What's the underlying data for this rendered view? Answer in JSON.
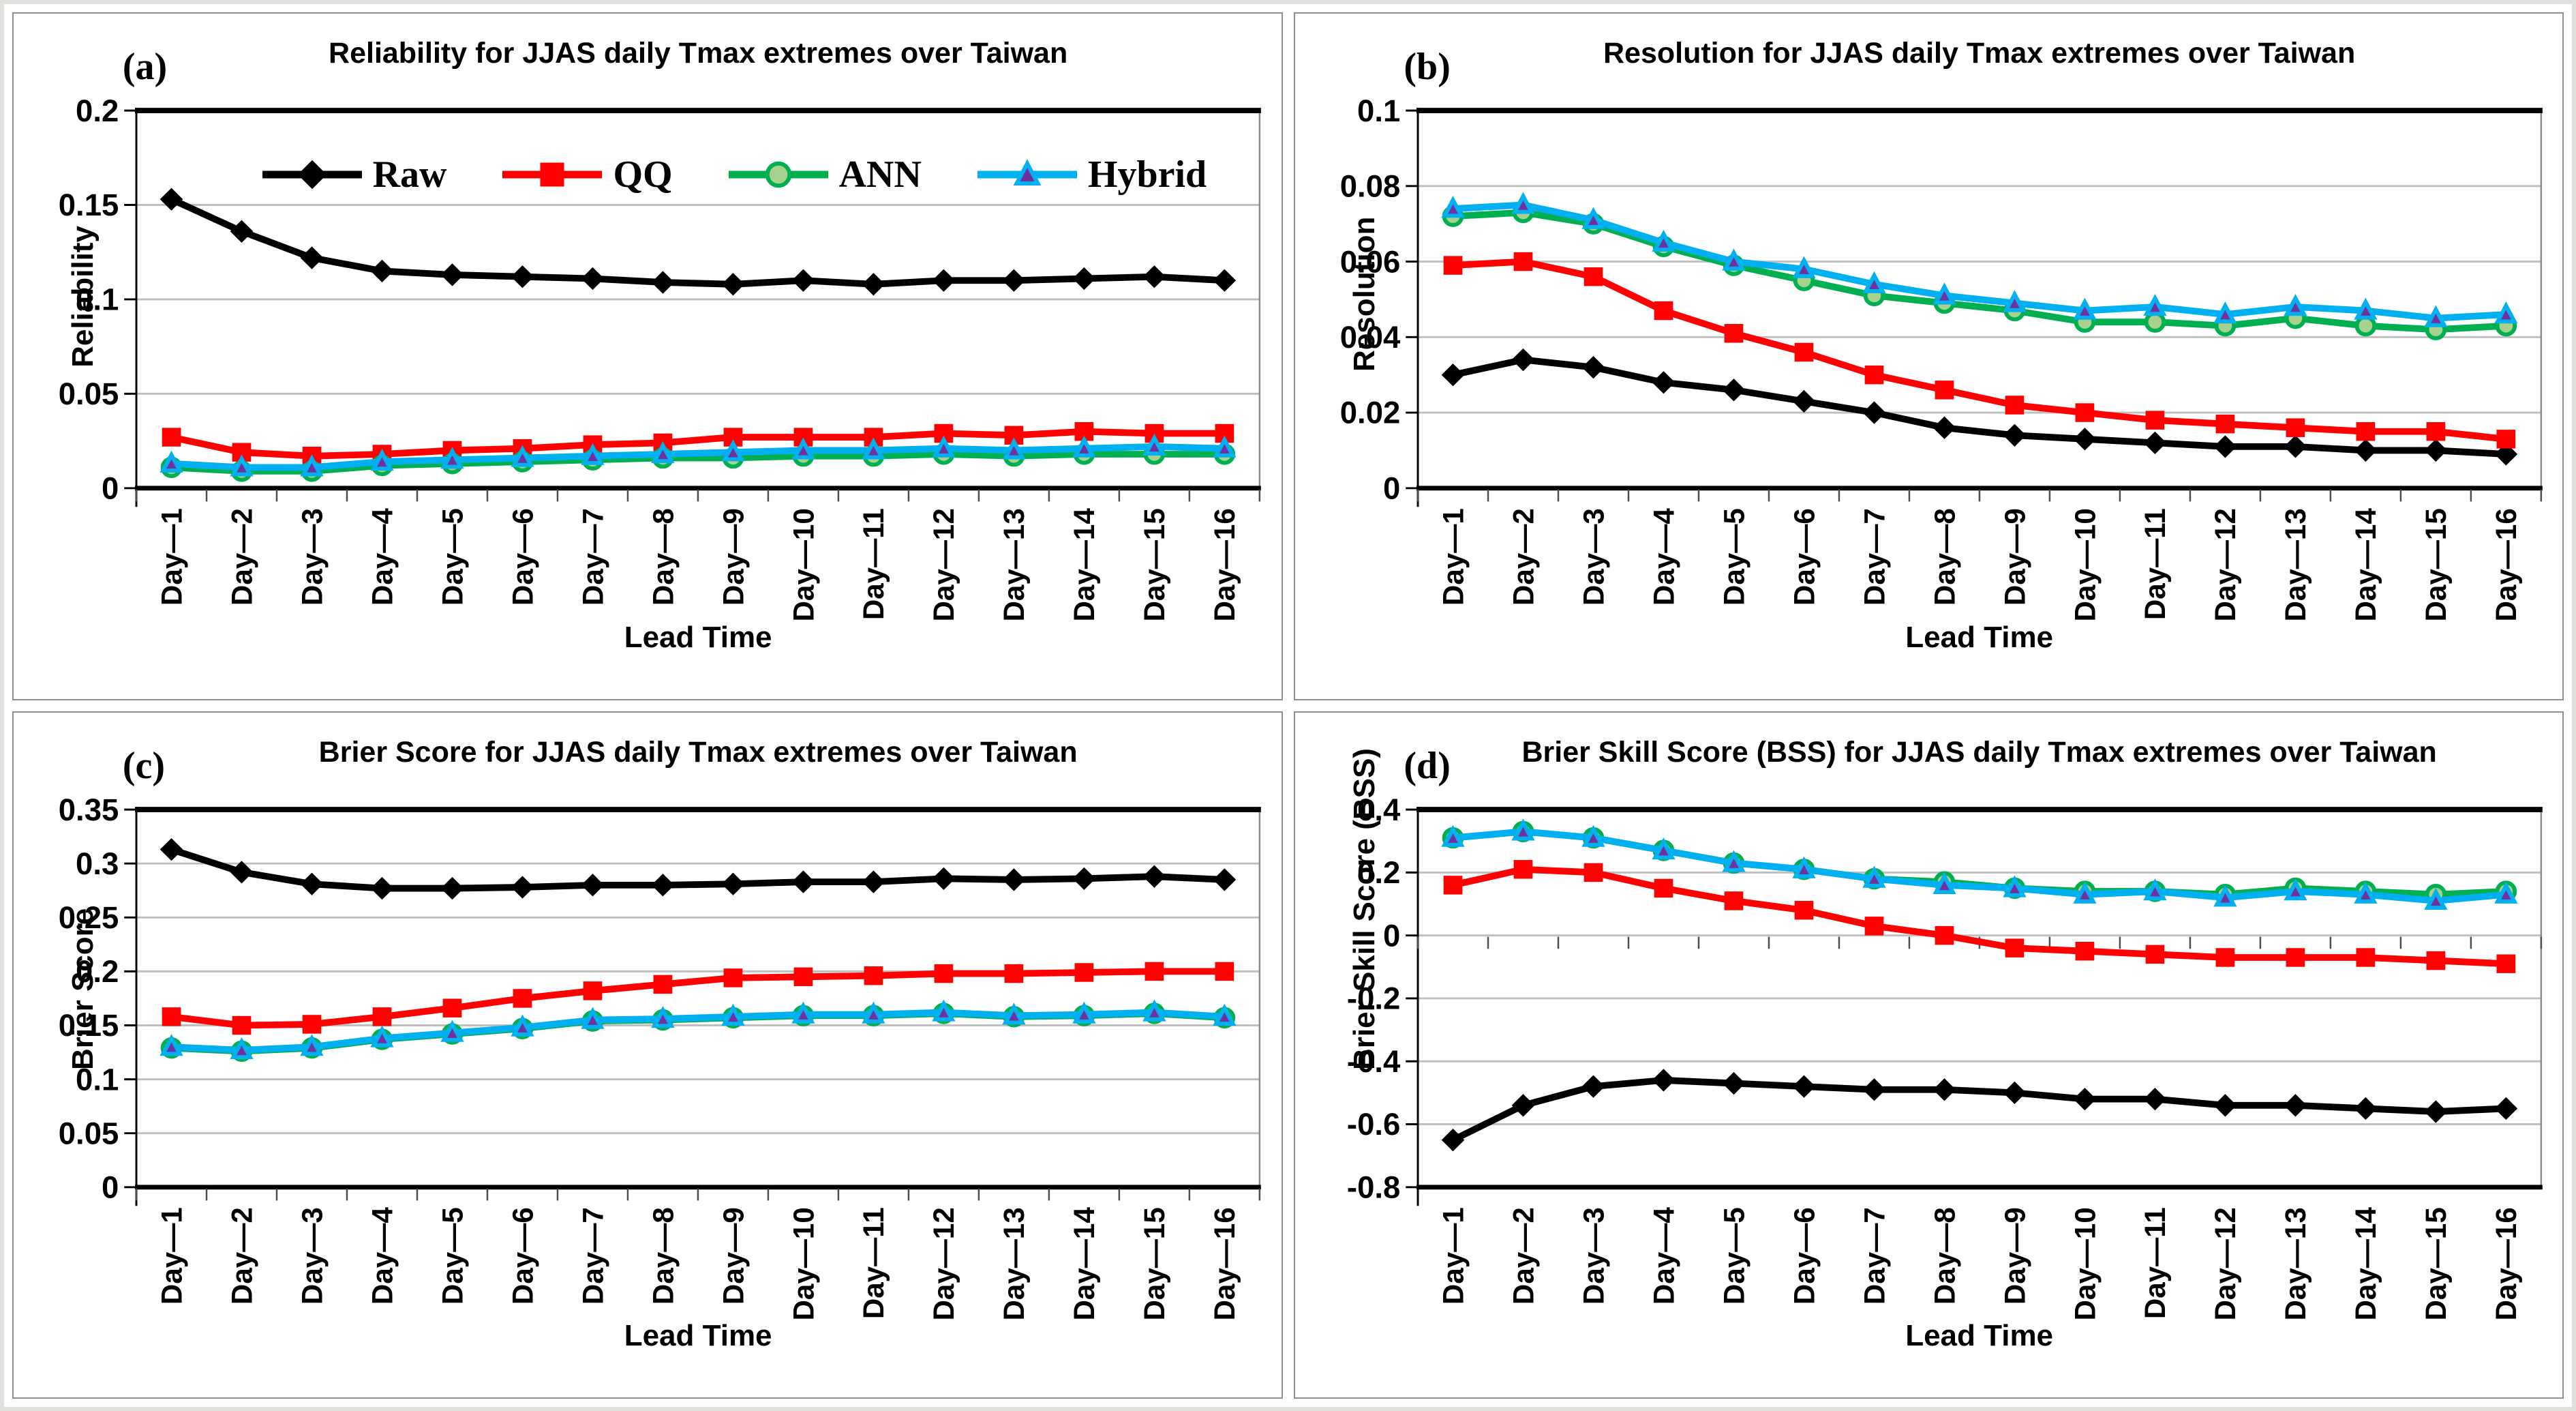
{
  "legend": {
    "items": [
      {
        "label": "Raw",
        "color": "#000000",
        "marker": "diamond",
        "marker_fill": "#000000"
      },
      {
        "label": "QQ",
        "color": "#FF0000",
        "marker": "square",
        "marker_fill": "#FF0000"
      },
      {
        "label": "ANN",
        "color": "#00B050",
        "marker": "circle",
        "marker_fill": "#A9D18E"
      },
      {
        "label": "Hybrid",
        "color": "#00B0F0",
        "marker": "triangle",
        "marker_fill": "#7030A0"
      }
    ],
    "position": "inside-top-panel-a"
  },
  "style": {
    "gridline_color": "#BFBFBF",
    "axis_color": "#000000",
    "right_border_color": "#8A8A8A",
    "tick_color": "#4D4D4D"
  },
  "chart_data": [
    {
      "type": "line",
      "panel_label": "(a)",
      "title": "Reliability  for JJAS daily Tmax extremes over Taiwan",
      "ylabel": "Reliability",
      "xlabel": "Lead Time",
      "ylim": [
        0,
        0.2
      ],
      "yticks": [
        0,
        0.05,
        0.1,
        0.15,
        0.2
      ],
      "ytick_labels": [
        "0",
        "0.05",
        "0.1",
        "0.15",
        "0.2"
      ],
      "grid": true,
      "legend": true,
      "categories": [
        "Day—1",
        "Day—2",
        "Day—3",
        "Day—4",
        "Day—5",
        "Day—6",
        "Day—7",
        "Day—8",
        "Day—9",
        "Day—10",
        "Day—11",
        "Day—12",
        "Day—13",
        "Day—14",
        "Day—15",
        "Day—16"
      ],
      "series": [
        {
          "name": "Raw",
          "values": [
            0.153,
            0.136,
            0.122,
            0.115,
            0.113,
            0.112,
            0.111,
            0.109,
            0.108,
            0.11,
            0.108,
            0.11,
            0.11,
            0.111,
            0.112,
            0.11
          ]
        },
        {
          "name": "QQ",
          "values": [
            0.027,
            0.019,
            0.017,
            0.018,
            0.02,
            0.021,
            0.023,
            0.024,
            0.027,
            0.027,
            0.027,
            0.029,
            0.028,
            0.03,
            0.029,
            0.029
          ]
        },
        {
          "name": "ANN",
          "values": [
            0.011,
            0.009,
            0.009,
            0.012,
            0.013,
            0.014,
            0.015,
            0.016,
            0.016,
            0.017,
            0.017,
            0.018,
            0.017,
            0.018,
            0.018,
            0.018
          ]
        },
        {
          "name": "Hybrid",
          "values": [
            0.013,
            0.011,
            0.011,
            0.014,
            0.015,
            0.016,
            0.017,
            0.018,
            0.019,
            0.02,
            0.02,
            0.021,
            0.02,
            0.021,
            0.022,
            0.021
          ]
        }
      ]
    },
    {
      "type": "line",
      "panel_label": "(b)",
      "title": "Resolution  for JJAS daily Tmax extremes over Taiwan",
      "ylabel": "Resolution",
      "xlabel": "Lead Time",
      "ylim": [
        0,
        0.1
      ],
      "yticks": [
        0,
        0.02,
        0.04,
        0.06,
        0.08,
        0.1
      ],
      "ytick_labels": [
        "0",
        "0.02",
        "0.04",
        "0.06",
        "0.08",
        "0.1"
      ],
      "grid": true,
      "legend": false,
      "categories": [
        "Day—1",
        "Day—2",
        "Day—3",
        "Day—4",
        "Day—5",
        "Day—6",
        "Day—7",
        "Day—8",
        "Day—9",
        "Day—10",
        "Day—11",
        "Day—12",
        "Day—13",
        "Day—14",
        "Day—15",
        "Day—16"
      ],
      "series": [
        {
          "name": "Raw",
          "values": [
            0.03,
            0.034,
            0.032,
            0.028,
            0.026,
            0.023,
            0.02,
            0.016,
            0.014,
            0.013,
            0.012,
            0.011,
            0.011,
            0.01,
            0.01,
            0.009
          ]
        },
        {
          "name": "QQ",
          "values": [
            0.059,
            0.06,
            0.056,
            0.047,
            0.041,
            0.036,
            0.03,
            0.026,
            0.022,
            0.02,
            0.018,
            0.017,
            0.016,
            0.015,
            0.015,
            0.013
          ]
        },
        {
          "name": "ANN",
          "values": [
            0.072,
            0.073,
            0.07,
            0.064,
            0.059,
            0.055,
            0.051,
            0.049,
            0.047,
            0.044,
            0.044,
            0.043,
            0.045,
            0.043,
            0.042,
            0.043
          ]
        },
        {
          "name": "Hybrid",
          "values": [
            0.074,
            0.075,
            0.071,
            0.065,
            0.06,
            0.058,
            0.054,
            0.051,
            0.049,
            0.047,
            0.048,
            0.046,
            0.048,
            0.047,
            0.045,
            0.046
          ]
        }
      ]
    },
    {
      "type": "line",
      "panel_label": "(c)",
      "title": "Brier Score for JJAS daily Tmax extremes over Taiwan",
      "ylabel": "Brier Score",
      "xlabel": "Lead Time",
      "ylim": [
        0,
        0.35
      ],
      "yticks": [
        0,
        0.05,
        0.1,
        0.15,
        0.2,
        0.25,
        0.3,
        0.35
      ],
      "ytick_labels": [
        "0",
        "0.05",
        "0.1",
        "0.15",
        "0.2",
        "0.25",
        "0.3",
        "0.35"
      ],
      "grid": true,
      "legend": false,
      "categories": [
        "Day—1",
        "Day—2",
        "Day—3",
        "Day—4",
        "Day—5",
        "Day—6",
        "Day—7",
        "Day—8",
        "Day—9",
        "Day—10",
        "Day—11",
        "Day—12",
        "Day—13",
        "Day—14",
        "Day—15",
        "Day—16"
      ],
      "series": [
        {
          "name": "Raw",
          "values": [
            0.313,
            0.292,
            0.281,
            0.277,
            0.277,
            0.278,
            0.28,
            0.28,
            0.281,
            0.283,
            0.283,
            0.286,
            0.285,
            0.286,
            0.288,
            0.285
          ]
        },
        {
          "name": "QQ",
          "values": [
            0.158,
            0.15,
            0.151,
            0.158,
            0.166,
            0.175,
            0.182,
            0.188,
            0.194,
            0.195,
            0.196,
            0.198,
            0.198,
            0.199,
            0.2,
            0.2
          ]
        },
        {
          "name": "ANN",
          "values": [
            0.129,
            0.126,
            0.129,
            0.137,
            0.142,
            0.147,
            0.154,
            0.155,
            0.157,
            0.159,
            0.159,
            0.161,
            0.158,
            0.159,
            0.161,
            0.157
          ]
        },
        {
          "name": "Hybrid",
          "values": [
            0.13,
            0.127,
            0.13,
            0.138,
            0.143,
            0.148,
            0.155,
            0.156,
            0.158,
            0.16,
            0.16,
            0.162,
            0.159,
            0.16,
            0.162,
            0.158
          ]
        }
      ]
    },
    {
      "type": "line",
      "panel_label": "(d)",
      "title": "Brier  Skill Score (BSS) for JJAS daily Tmax extremes over Taiwan",
      "ylabel": "Brier Skill Score (BSS)",
      "xlabel": "Lead Time",
      "ylim": [
        -0.8,
        0.4
      ],
      "yticks": [
        -0.8,
        -0.6,
        -0.4,
        -0.2,
        0,
        0.2,
        0.4
      ],
      "ytick_labels": [
        "-0.8",
        "-0.6",
        "-0.4",
        "-0.2",
        "0",
        "0.2",
        "0.4"
      ],
      "grid": true,
      "legend": false,
      "categories": [
        "Day—1",
        "Day—2",
        "Day—3",
        "Day—4",
        "Day—5",
        "Day—6",
        "Day—7",
        "Day—8",
        "Day—9",
        "Day—10",
        "Day—11",
        "Day—12",
        "Day—13",
        "Day—14",
        "Day—15",
        "Day—16"
      ],
      "series": [
        {
          "name": "Raw",
          "values": [
            -0.65,
            -0.54,
            -0.48,
            -0.46,
            -0.47,
            -0.48,
            -0.49,
            -0.49,
            -0.5,
            -0.52,
            -0.52,
            -0.54,
            -0.54,
            -0.55,
            -0.56,
            -0.55
          ]
        },
        {
          "name": "QQ",
          "values": [
            0.16,
            0.21,
            0.2,
            0.15,
            0.11,
            0.08,
            0.03,
            0.0,
            -0.04,
            -0.05,
            -0.06,
            -0.07,
            -0.07,
            -0.07,
            -0.08,
            -0.09
          ]
        },
        {
          "name": "ANN",
          "values": [
            0.31,
            0.33,
            0.31,
            0.27,
            0.23,
            0.21,
            0.18,
            0.17,
            0.15,
            0.14,
            0.14,
            0.13,
            0.15,
            0.14,
            0.13,
            0.14
          ]
        },
        {
          "name": "Hybrid",
          "values": [
            0.31,
            0.33,
            0.31,
            0.27,
            0.23,
            0.21,
            0.18,
            0.16,
            0.15,
            0.13,
            0.14,
            0.12,
            0.14,
            0.13,
            0.11,
            0.13
          ]
        }
      ]
    }
  ]
}
